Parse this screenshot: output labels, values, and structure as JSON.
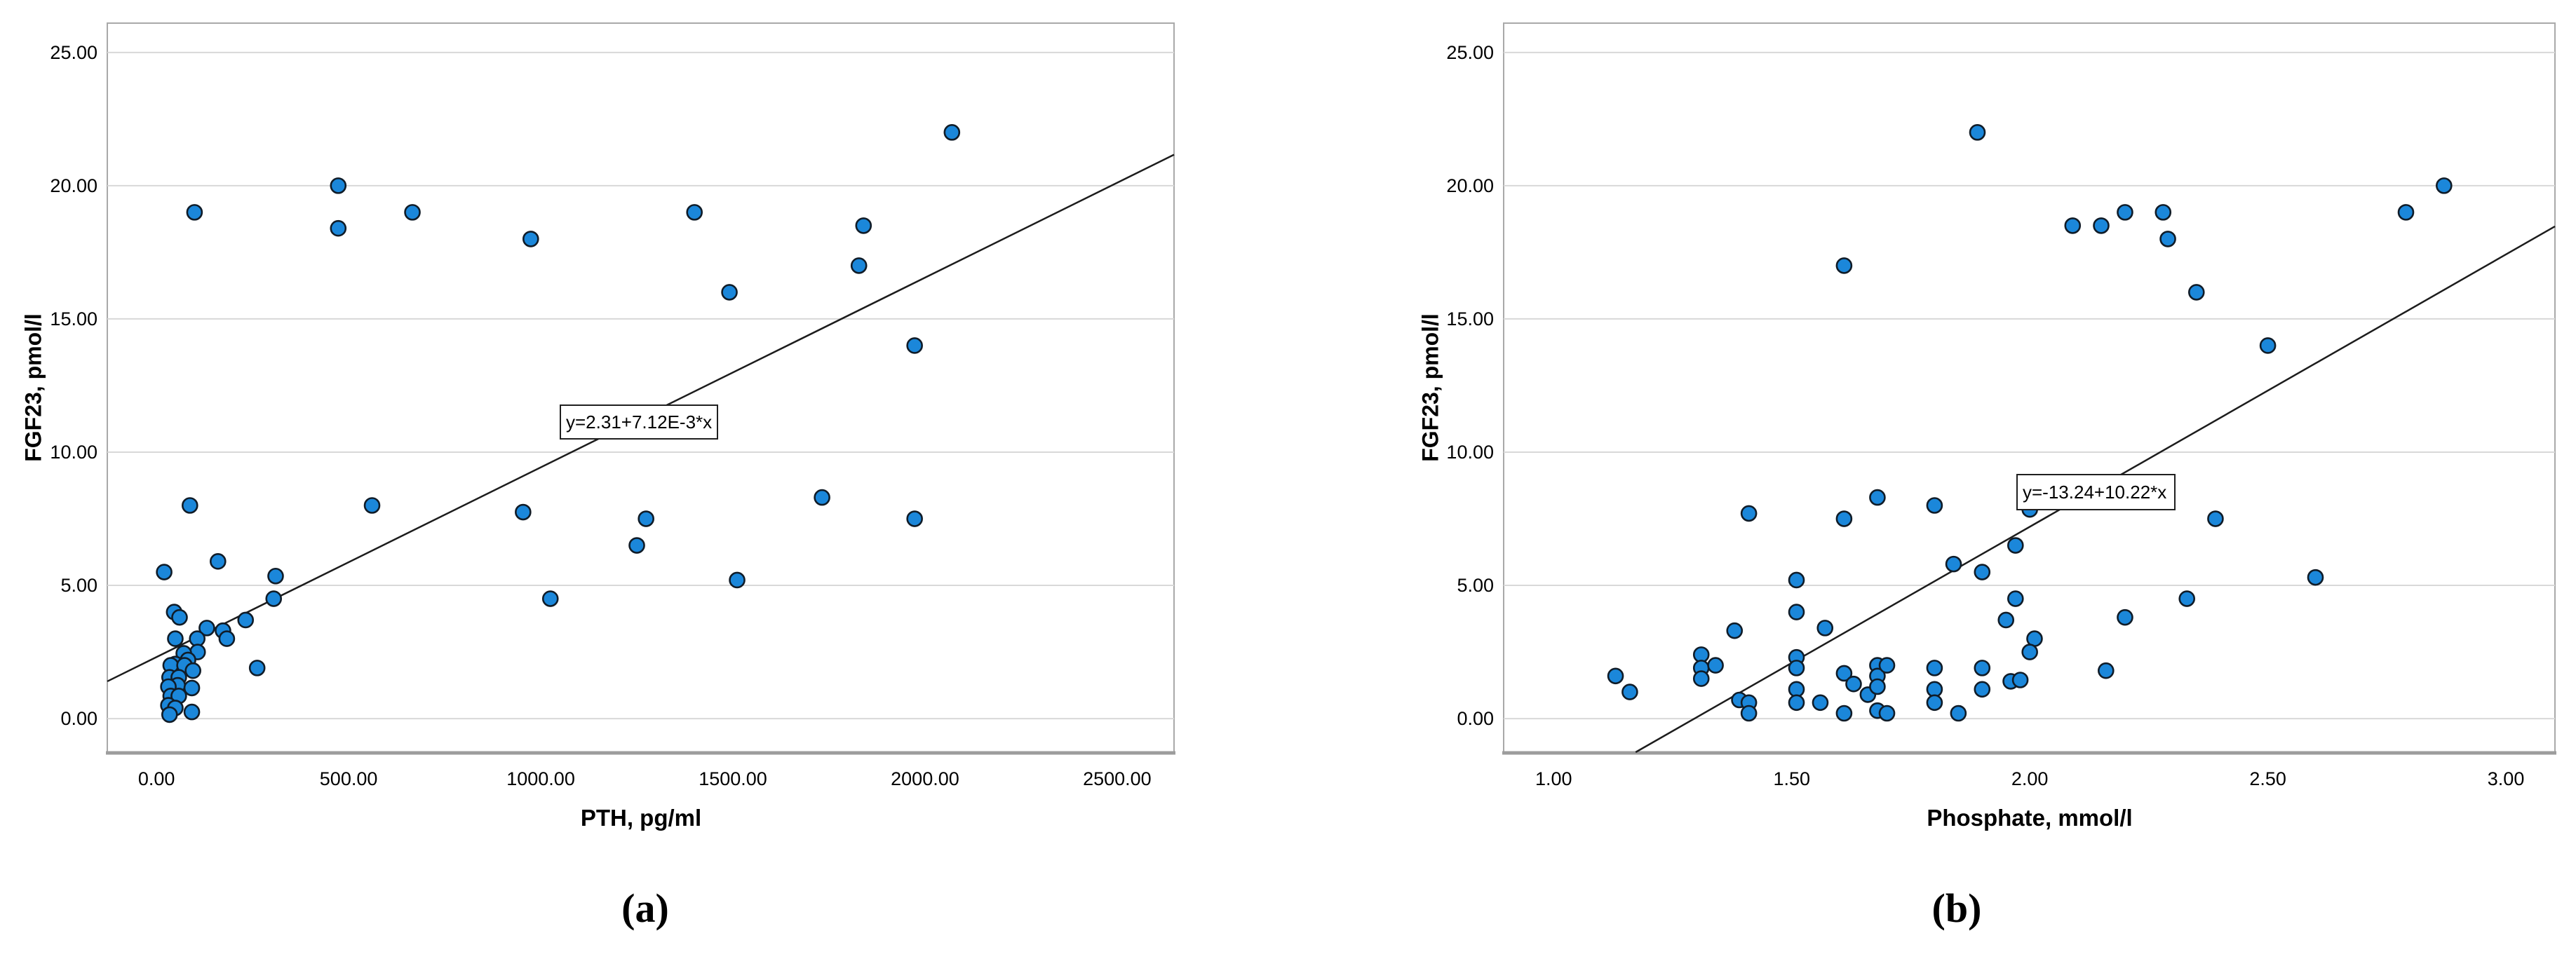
{
  "figure": {
    "background": "#ffffff",
    "panel_a_label": "(a)",
    "panel_b_label": "(b)"
  },
  "style": {
    "point_fill": "#1b87da",
    "point_stroke": "#101c28",
    "grid_color": "#d8d8d8",
    "frame_color": "#a9a9a9",
    "axis_line_color": "#9d9d9d",
    "regression_color": "#1c1c1c",
    "text_color": "#000000"
  },
  "chart_data": [
    {
      "id": "a",
      "type": "scatter",
      "title": "",
      "xlabel": "PTH, pg/ml",
      "ylabel": "FGF23, pmol/l",
      "x_ticks": [
        0,
        500,
        1000,
        1500,
        2000,
        2500
      ],
      "x_tick_labels": [
        "0.00",
        "500.00",
        "1000.00",
        "1500.00",
        "2000.00",
        "2500.00"
      ],
      "y_ticks": [
        0,
        5,
        10,
        15,
        20,
        25
      ],
      "y_tick_labels": [
        "0.00",
        "5.00",
        "10.00",
        "15.00",
        "20.00",
        "25.00"
      ],
      "xlim": [
        -128,
        2648
      ],
      "ylim": [
        -1.26,
        26.1
      ],
      "grid": true,
      "frame": {
        "l": 153,
        "t": 33,
        "r": 1674,
        "b": 1073
      },
      "regression": {
        "label": "y=2.31+7.12E-3*x",
        "intercept": 2.31,
        "slope": 0.00712
      },
      "points": [
        [
          99,
          19.0
        ],
        [
          473,
          20.0
        ],
        [
          473,
          18.4
        ],
        [
          666,
          19.0
        ],
        [
          974,
          18.0
        ],
        [
          1400,
          19.0
        ],
        [
          1491,
          16.0
        ],
        [
          1840,
          18.5
        ],
        [
          1828,
          17.0
        ],
        [
          1973,
          14.0
        ],
        [
          2070,
          22.0
        ],
        [
          87,
          8.0
        ],
        [
          561,
          8.0
        ],
        [
          954,
          7.75
        ],
        [
          1250,
          6.5
        ],
        [
          1274,
          7.5
        ],
        [
          1732,
          8.3
        ],
        [
          1973,
          7.5
        ],
        [
          1511,
          5.2
        ],
        [
          1025,
          4.5
        ],
        [
          20,
          5.5
        ],
        [
          160,
          5.9
        ],
        [
          310,
          5.35
        ],
        [
          305,
          4.5
        ],
        [
          46,
          4.0
        ],
        [
          60,
          3.8
        ],
        [
          232,
          3.7
        ],
        [
          131,
          3.4
        ],
        [
          173,
          3.3
        ],
        [
          49,
          3.0
        ],
        [
          106,
          3.0
        ],
        [
          183,
          3.0
        ],
        [
          107,
          2.5
        ],
        [
          71,
          2.45
        ],
        [
          82,
          2.2
        ],
        [
          49,
          2.05
        ],
        [
          37,
          2.0
        ],
        [
          73,
          2.0
        ],
        [
          262,
          1.9
        ],
        [
          95,
          1.8
        ],
        [
          34,
          1.55
        ],
        [
          58,
          1.55
        ],
        [
          55,
          1.25
        ],
        [
          31,
          1.2
        ],
        [
          92,
          1.15
        ],
        [
          37,
          0.85
        ],
        [
          58,
          0.85
        ],
        [
          31,
          0.5
        ],
        [
          49,
          0.4
        ],
        [
          92,
          0.25
        ],
        [
          34,
          0.15
        ]
      ]
    },
    {
      "id": "b",
      "type": "scatter",
      "title": "",
      "xlabel": "Phosphate, mmol/l",
      "ylabel": "FGF23, pmol/l",
      "x_ticks": [
        1.0,
        1.5,
        2.0,
        2.5,
        3.0
      ],
      "x_tick_labels": [
        "1.00",
        "1.50",
        "2.00",
        "2.50",
        "3.00"
      ],
      "y_ticks": [
        0,
        5,
        10,
        15,
        20,
        25
      ],
      "y_tick_labels": [
        "0.00",
        "5.00",
        "10.00",
        "15.00",
        "20.00",
        "25.00"
      ],
      "xlim": [
        0.895,
        3.103
      ],
      "ylim": [
        -1.26,
        26.1
      ],
      "grid": true,
      "frame": {
        "l": 2144,
        "t": 33,
        "r": 3643,
        "b": 1073
      },
      "regression": {
        "label": "y=-13.24+10.22*x",
        "intercept": -13.24,
        "slope": 10.22
      },
      "points": [
        [
          1.61,
          17.0
        ],
        [
          1.89,
          22.0
        ],
        [
          2.09,
          18.5
        ],
        [
          2.15,
          18.5
        ],
        [
          2.2,
          19.0
        ],
        [
          2.28,
          19.0
        ],
        [
          2.29,
          18.0
        ],
        [
          2.35,
          16.0
        ],
        [
          2.5,
          14.0
        ],
        [
          2.79,
          19.0
        ],
        [
          2.87,
          20.0
        ],
        [
          1.41,
          7.7
        ],
        [
          1.61,
          7.5
        ],
        [
          1.68,
          8.3
        ],
        [
          1.8,
          8.0
        ],
        [
          2.0,
          7.85
        ],
        [
          2.39,
          7.5
        ],
        [
          1.84,
          5.8
        ],
        [
          1.9,
          5.5
        ],
        [
          1.97,
          6.5
        ],
        [
          1.51,
          5.2
        ],
        [
          2.6,
          5.3
        ],
        [
          1.97,
          4.5
        ],
        [
          2.33,
          4.5
        ],
        [
          1.51,
          4.0
        ],
        [
          1.95,
          3.7
        ],
        [
          2.2,
          3.8
        ],
        [
          1.13,
          1.6
        ],
        [
          1.16,
          1.0
        ],
        [
          1.31,
          2.4
        ],
        [
          1.31,
          1.9
        ],
        [
          1.34,
          2.0
        ],
        [
          1.31,
          1.5
        ],
        [
          1.38,
          3.3
        ],
        [
          1.57,
          3.4
        ],
        [
          1.51,
          2.3
        ],
        [
          1.51,
          1.9
        ],
        [
          1.39,
          0.7
        ],
        [
          1.41,
          0.6
        ],
        [
          1.41,
          0.2
        ],
        [
          1.51,
          1.1
        ],
        [
          1.51,
          0.6
        ],
        [
          1.56,
          0.6
        ],
        [
          1.61,
          1.7
        ],
        [
          1.63,
          1.3
        ],
        [
          1.61,
          0.2
        ],
        [
          1.66,
          0.9
        ],
        [
          1.68,
          2.0
        ],
        [
          1.68,
          1.6
        ],
        [
          1.68,
          1.2
        ],
        [
          1.7,
          2.0
        ],
        [
          1.68,
          0.3
        ],
        [
          1.7,
          0.2
        ],
        [
          1.8,
          1.9
        ],
        [
          1.8,
          1.1
        ],
        [
          1.8,
          0.6
        ],
        [
          1.9,
          1.9
        ],
        [
          1.9,
          1.1
        ],
        [
          1.96,
          1.4
        ],
        [
          1.98,
          1.45
        ],
        [
          1.85,
          0.2
        ],
        [
          2.01,
          3.0
        ],
        [
          2.0,
          2.5
        ],
        [
          2.16,
          1.8
        ]
      ]
    }
  ]
}
